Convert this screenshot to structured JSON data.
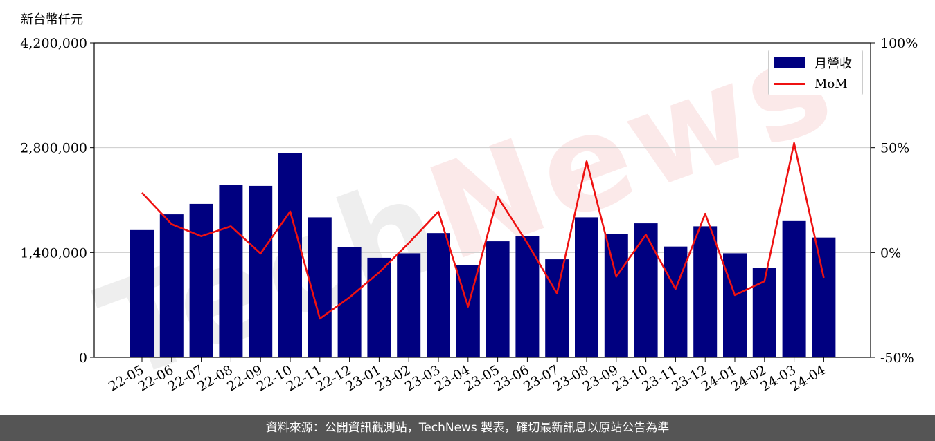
{
  "unit_label": "新台幣仟元",
  "footer_text": "資料來源：公開資訊觀測站，TechNews 製表，確切最新訊息以原站公告為準",
  "watermark": {
    "part1": "Tech",
    "part2": "News"
  },
  "colors": {
    "bar": "#000080",
    "line": "#ee1111",
    "grid": "#cccccc",
    "footer_bg": "#555555"
  },
  "chart_data": {
    "type": "bar",
    "categories": [
      "22-05",
      "22-06",
      "22-07",
      "22-08",
      "22-09",
      "22-10",
      "22-11",
      "22-12",
      "23-01",
      "23-02",
      "23-03",
      "23-04",
      "23-05",
      "23-06",
      "23-07",
      "23-08",
      "23-09",
      "23-10",
      "23-11",
      "23-12",
      "24-01",
      "24-02",
      "24-03",
      "24-04"
    ],
    "series": [
      {
        "name": "月營收",
        "type": "bar",
        "axis": "left",
        "values": [
          1700000,
          1910000,
          2050000,
          2300000,
          2290000,
          2730000,
          1870000,
          1470000,
          1330000,
          1390000,
          1660000,
          1230000,
          1550000,
          1620000,
          1310000,
          1870000,
          1650000,
          1790000,
          1480000,
          1750000,
          1390000,
          1200000,
          1820000,
          1600000
        ]
      },
      {
        "name": "MoM",
        "type": "line",
        "axis": "right",
        "values": [
          28.5,
          13.5,
          7.8,
          12.5,
          -0.5,
          19.6,
          -31.5,
          -21.4,
          -9.5,
          4.5,
          19.5,
          -25.8,
          26.5,
          4.5,
          -19.5,
          43.5,
          -11.5,
          8.5,
          -17.4,
          18.5,
          -20.3,
          -13.7,
          52.2,
          -12.1
        ]
      }
    ],
    "yaxis_left": {
      "min": 0,
      "max": 4200000,
      "ticks": [
        "0",
        "1,400,000",
        "2,800,000",
        "4,200,000"
      ],
      "tick_values": [
        0,
        1400000,
        2800000,
        4200000
      ]
    },
    "yaxis_right": {
      "min": -50,
      "max": 100,
      "ticks": [
        "-50%",
        "0%",
        "50%",
        "100%"
      ],
      "tick_values": [
        -50,
        0,
        50,
        100
      ]
    },
    "grid": true,
    "legend_position": "top-right"
  }
}
